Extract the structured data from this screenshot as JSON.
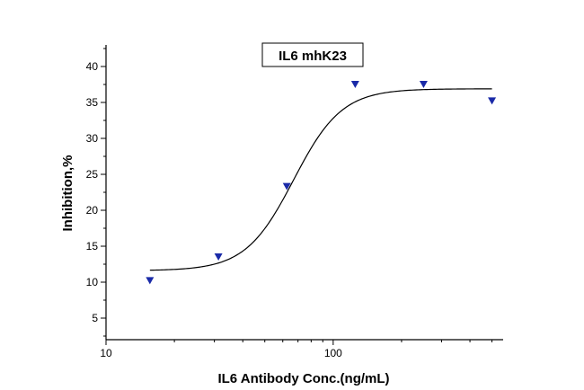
{
  "chart_data": {
    "type": "scatter",
    "title": "IL6 mhK23",
    "xlabel": "IL6 Antibody Conc.(ng/mL)",
    "ylabel": "Inhibition,%",
    "x_scale": "log",
    "xlim": [
      10,
      560
    ],
    "ylim": [
      2,
      43
    ],
    "x_ticks": [
      10,
      100
    ],
    "y_ticks": [
      5,
      10,
      15,
      20,
      25,
      30,
      35,
      40
    ],
    "grid": false,
    "marker_color": "#1a2aa8",
    "fit_color": "#000000",
    "series": [
      {
        "marker": "triangle-down",
        "x": [
          15.6,
          31.25,
          62.5,
          125,
          250,
          500
        ],
        "y": [
          10.2,
          13.5,
          23.3,
          37.5,
          37.5,
          35.2
        ]
      }
    ],
    "fit": {
      "model": "logistic",
      "bottom": 11.6,
      "top": 36.9,
      "ec50": 67,
      "hill": 4.1
    }
  }
}
